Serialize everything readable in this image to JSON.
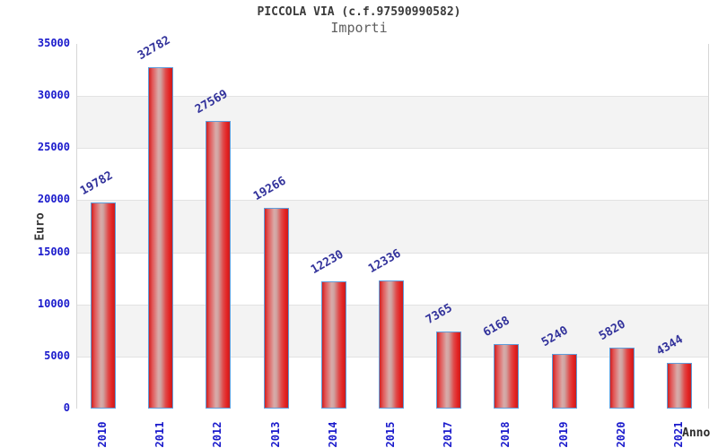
{
  "header": {
    "title": "PICCOLA VIA (c.f.97590990582)",
    "subtitle": "Importi"
  },
  "chart_data": {
    "type": "bar",
    "title": "PICCOLA VIA (c.f.97590990582)",
    "subtitle": "Importi",
    "xlabel": "Anno",
    "ylabel": "Euro",
    "categories": [
      "2010",
      "2011",
      "2012",
      "2013",
      "2014",
      "2015",
      "2017",
      "2018",
      "2019",
      "2020",
      "2021"
    ],
    "values": [
      19782,
      32782,
      27569,
      19266,
      12230,
      12336,
      7365,
      6168,
      5240,
      5820,
      4344
    ],
    "ylim": [
      0,
      35000
    ],
    "ytick_step": 5000,
    "yticks": [
      "0",
      "5000",
      "10000",
      "15000",
      "20000",
      "25000",
      "30000",
      "35000"
    ],
    "grid": true,
    "legend": "none",
    "colors": {
      "bar_edge": "#cf2020",
      "bar_center": "#d2a6a4",
      "bar_border": "#5f9ddb",
      "tick_label": "#1a1acc",
      "value_label": "#32329b",
      "band_alt": "#f3f3f3",
      "gridline": "#e2e2e2",
      "title_text": "#3a3a3a",
      "subtitle_text": "#5f5f5f",
      "axis_title_text": "#333333"
    }
  }
}
